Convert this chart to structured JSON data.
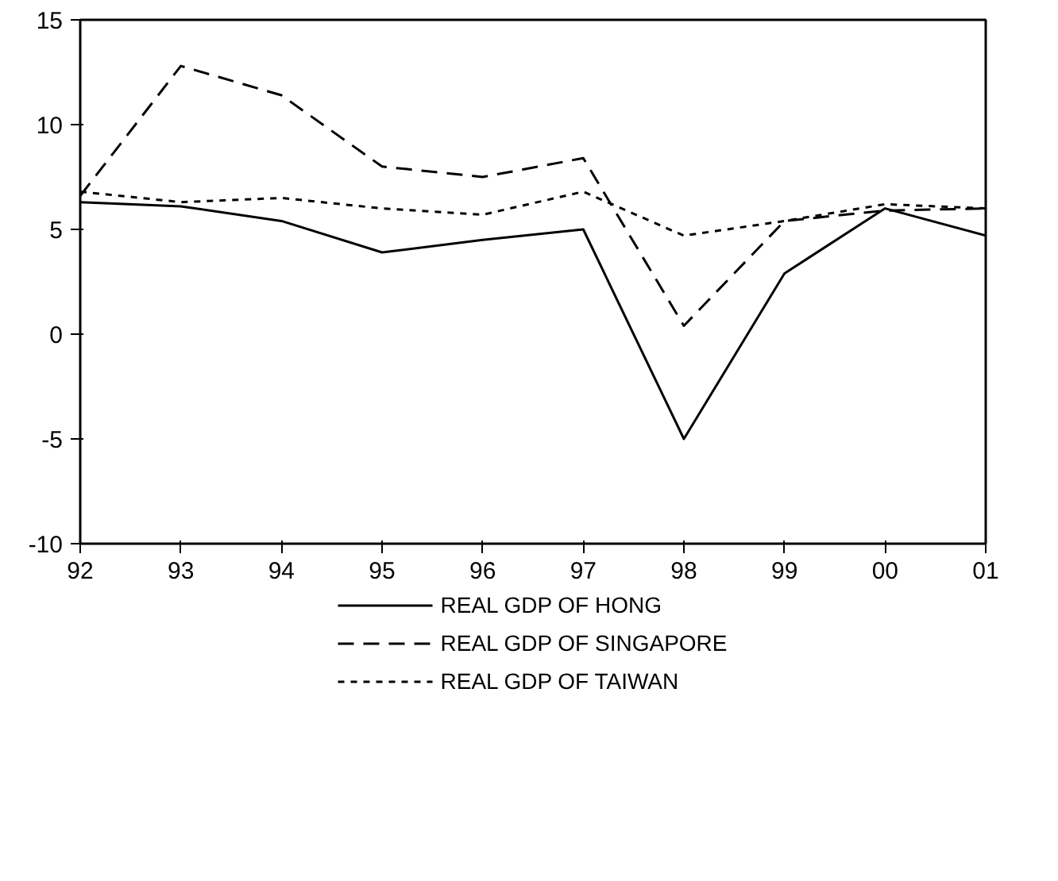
{
  "chart_data": {
    "type": "line",
    "categories": [
      "92",
      "93",
      "94",
      "95",
      "96",
      "97",
      "98",
      "99",
      "00",
      "01"
    ],
    "ylim": [
      -10,
      15
    ],
    "yticks": [
      -10,
      -5,
      0,
      5,
      10,
      15
    ],
    "grid": false,
    "legend": "bottom",
    "series": [
      {
        "name": "REAL GDP OF HONG",
        "color": "#000000",
        "line_style": "solid",
        "values": [
          6.3,
          6.1,
          5.4,
          3.9,
          4.5,
          5.0,
          -5.0,
          2.9,
          6.0,
          4.7
        ]
      },
      {
        "name": "REAL GDP OF SINGAPORE",
        "color": "#000000",
        "line_style": "dashed",
        "values": [
          6.6,
          12.8,
          11.4,
          8.0,
          7.5,
          8.4,
          0.4,
          5.4,
          5.9,
          6.0
        ]
      },
      {
        "name": "REAL GDP OF TAIWAN",
        "color": "#000000",
        "line_style": "dotted",
        "values": [
          6.8,
          6.3,
          6.5,
          6.0,
          5.7,
          6.8,
          4.7,
          5.4,
          6.2,
          6.0
        ]
      }
    ]
  }
}
